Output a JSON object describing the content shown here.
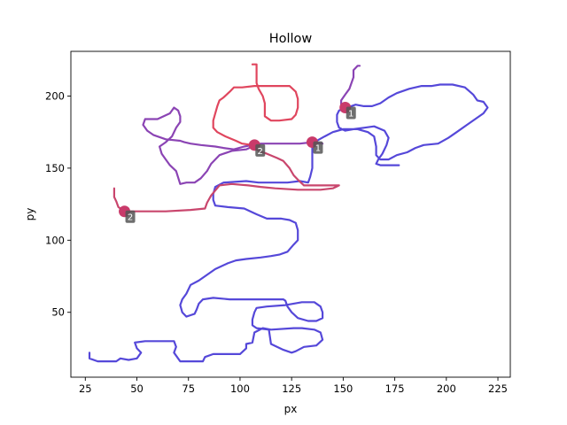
{
  "chart_data": {
    "type": "line",
    "title": "Hollow",
    "xlabel": "px",
    "ylabel": "py",
    "xlim": [
      18,
      231
    ],
    "ylim": [
      5,
      231
    ],
    "xticks": [
      25,
      50,
      75,
      100,
      125,
      150,
      175,
      200,
      225
    ],
    "yticks": [
      50,
      100,
      150,
      200
    ],
    "grid": false,
    "colors": {
      "start": "#5548d9",
      "mid": "#8b44b4",
      "end": "#e0465e",
      "marker": "#c93a6a",
      "label_box": "#555555"
    },
    "series": [
      {
        "values": [
          [
            27,
            22
          ],
          [
            27,
            18
          ],
          [
            31,
            16
          ],
          [
            40,
            16
          ],
          [
            42,
            18
          ],
          [
            46,
            17
          ],
          [
            50,
            18
          ],
          [
            52,
            22
          ],
          [
            50,
            25
          ],
          [
            49,
            29
          ],
          [
            54,
            30
          ],
          [
            68,
            30
          ],
          [
            69,
            26
          ],
          [
            68,
            22
          ],
          [
            71,
            16
          ],
          [
            82,
            16
          ],
          [
            83,
            19
          ],
          [
            87,
            21
          ],
          [
            100,
            21
          ],
          [
            103,
            25
          ],
          [
            103,
            28
          ],
          [
            106,
            29
          ],
          [
            107,
            36
          ],
          [
            111,
            39
          ],
          [
            115,
            38
          ],
          [
            126,
            39
          ],
          [
            130,
            39
          ],
          [
            136,
            38
          ],
          [
            139,
            36
          ],
          [
            140,
            31
          ],
          [
            137,
            27
          ],
          [
            131,
            26
          ],
          [
            127,
            23
          ],
          [
            125,
            22
          ],
          [
            121,
            24
          ],
          [
            115,
            28
          ],
          [
            114,
            38
          ],
          [
            108,
            39
          ],
          [
            106,
            41
          ],
          [
            106,
            45
          ],
          [
            107,
            50
          ],
          [
            108,
            53
          ],
          [
            113,
            54
          ],
          [
            122,
            55
          ],
          [
            130,
            57
          ],
          [
            136,
            57
          ],
          [
            139,
            54
          ],
          [
            140,
            50
          ],
          [
            140,
            46
          ],
          [
            137,
            44
          ],
          [
            133,
            44
          ],
          [
            128,
            46
          ],
          [
            125,
            50
          ],
          [
            123,
            54
          ],
          [
            122,
            58
          ],
          [
            121,
            59
          ],
          [
            95,
            59
          ],
          [
            87,
            60
          ],
          [
            82,
            59
          ],
          [
            80,
            56
          ],
          [
            79,
            52
          ],
          [
            78,
            49
          ],
          [
            76,
            48
          ],
          [
            74,
            47
          ],
          [
            72,
            50
          ],
          [
            71,
            55
          ],
          [
            72,
            59
          ],
          [
            74,
            63
          ],
          [
            76,
            69
          ],
          [
            80,
            72
          ],
          [
            84,
            76
          ],
          [
            88,
            80
          ],
          [
            94,
            84
          ],
          [
            98,
            86
          ],
          [
            103,
            87
          ],
          [
            110,
            88
          ],
          [
            115,
            89
          ],
          [
            119,
            90
          ],
          [
            123,
            92
          ],
          [
            126,
            97
          ],
          [
            128,
            100
          ],
          [
            128,
            107
          ],
          [
            127,
            112
          ],
          [
            124,
            114
          ],
          [
            120,
            115
          ],
          [
            113,
            115
          ],
          [
            108,
            118
          ],
          [
            102,
            122
          ],
          [
            94,
            123
          ],
          [
            88,
            124
          ],
          [
            87,
            128
          ],
          [
            87,
            132
          ],
          [
            88,
            137
          ],
          [
            92,
            140
          ],
          [
            103,
            141
          ],
          [
            109,
            140
          ],
          [
            117,
            140
          ],
          [
            123,
            140
          ],
          [
            129,
            141
          ],
          [
            133,
            140
          ],
          [
            134,
            144
          ],
          [
            135,
            150
          ],
          [
            135,
            156
          ],
          [
            135,
            164
          ],
          [
            136,
            168
          ],
          [
            141,
            172
          ],
          [
            145,
            175
          ],
          [
            150,
            177
          ],
          [
            157,
            177
          ],
          [
            162,
            175
          ],
          [
            165,
            172
          ],
          [
            166,
            165
          ],
          [
            166,
            159
          ],
          [
            168,
            156
          ],
          [
            172,
            156
          ],
          [
            176,
            159
          ],
          [
            181,
            161
          ],
          [
            185,
            164
          ],
          [
            189,
            166
          ],
          [
            196,
            167
          ],
          [
            201,
            171
          ],
          [
            205,
            175
          ],
          [
            210,
            180
          ],
          [
            214,
            184
          ],
          [
            218,
            188
          ],
          [
            220,
            192
          ],
          [
            218,
            196
          ],
          [
            215,
            197
          ],
          [
            213,
            201
          ],
          [
            209,
            206
          ],
          [
            203,
            208
          ],
          [
            197,
            208
          ],
          [
            193,
            207
          ],
          [
            188,
            207
          ],
          [
            182,
            205
          ],
          [
            176,
            202
          ],
          [
            172,
            199
          ],
          [
            168,
            195
          ],
          [
            164,
            193
          ],
          [
            160,
            193
          ],
          [
            156,
            194
          ],
          [
            152,
            192
          ],
          [
            148,
            190
          ],
          [
            147,
            187
          ],
          [
            147,
            182
          ],
          [
            148,
            178
          ],
          [
            151,
            176
          ],
          [
            155,
            177
          ],
          [
            160,
            178
          ],
          [
            165,
            179
          ],
          [
            170,
            176
          ],
          [
            172,
            171
          ],
          [
            171,
            166
          ],
          [
            169,
            160
          ],
          [
            167,
            156
          ],
          [
            166,
            153
          ],
          [
            168,
            152
          ],
          [
            177,
            152
          ]
        ],
        "color": "#5548d9"
      },
      {
        "values": [
          [
            149,
            192
          ],
          [
            149,
            197
          ],
          [
            151,
            201
          ],
          [
            153,
            205
          ],
          [
            154,
            209
          ],
          [
            155,
            213
          ],
          [
            155,
            218
          ],
          [
            157,
            221
          ],
          [
            158,
            221
          ]
        ],
        "color": "#8b44b4"
      },
      {
        "values": [
          [
            140,
            167
          ],
          [
            135,
            168
          ],
          [
            129,
            167
          ],
          [
            120,
            167
          ],
          [
            110,
            167
          ],
          [
            108,
            166
          ],
          [
            106,
            165
          ],
          [
            103,
            163
          ],
          [
            96,
            162
          ],
          [
            90,
            159
          ],
          [
            86,
            153
          ],
          [
            84,
            148
          ],
          [
            81,
            143
          ],
          [
            78,
            140
          ],
          [
            74,
            140
          ],
          [
            71,
            139
          ],
          [
            69,
            148
          ],
          [
            66,
            152
          ],
          [
            64,
            156
          ],
          [
            62,
            160
          ],
          [
            61,
            165
          ],
          [
            64,
            168
          ],
          [
            67,
            172
          ],
          [
            69,
            178
          ],
          [
            71,
            182
          ],
          [
            71,
            186
          ],
          [
            70,
            190
          ],
          [
            68,
            192
          ],
          [
            66,
            188
          ],
          [
            60,
            184
          ],
          [
            54,
            184
          ],
          [
            53,
            180
          ],
          [
            55,
            176
          ],
          [
            58,
            173
          ],
          [
            64,
            170
          ],
          [
            71,
            169
          ],
          [
            73,
            168
          ],
          [
            76,
            167
          ],
          [
            81,
            166
          ],
          [
            88,
            165
          ],
          [
            92,
            164
          ],
          [
            97,
            163
          ],
          [
            102,
            165
          ],
          [
            106,
            166
          ]
        ],
        "color": "#8b44b4"
      },
      {
        "values": [
          [
            106,
            166
          ],
          [
            109,
            162
          ],
          [
            113,
            160
          ],
          [
            118,
            157
          ],
          [
            121,
            155
          ],
          [
            124,
            150
          ],
          [
            126,
            145
          ],
          [
            128,
            142
          ],
          [
            131,
            138
          ],
          [
            136,
            138
          ],
          [
            144,
            138
          ],
          [
            148,
            138
          ],
          [
            145,
            136
          ],
          [
            139,
            135
          ],
          [
            128,
            135
          ],
          [
            117,
            136
          ],
          [
            110,
            137
          ],
          [
            104,
            138
          ],
          [
            96,
            139
          ],
          [
            90,
            138
          ],
          [
            86,
            131
          ],
          [
            84,
            126
          ],
          [
            83,
            122
          ],
          [
            76,
            121
          ],
          [
            64,
            120
          ],
          [
            56,
            120
          ],
          [
            49,
            120
          ],
          [
            44,
            120
          ],
          [
            41,
            123
          ],
          [
            40,
            127
          ],
          [
            39,
            130
          ],
          [
            39,
            136
          ]
        ],
        "color": "#c9466d"
      },
      {
        "values": [
          [
            106,
            166
          ],
          [
            101,
            167
          ],
          [
            98,
            169
          ],
          [
            93,
            172
          ],
          [
            89,
            175
          ],
          [
            87,
            178
          ],
          [
            87,
            183
          ],
          [
            88,
            188
          ],
          [
            89,
            193
          ],
          [
            90,
            197
          ],
          [
            92,
            199
          ],
          [
            95,
            203
          ],
          [
            97,
            206
          ],
          [
            101,
            206
          ],
          [
            107,
            207
          ],
          [
            116,
            207
          ],
          [
            124,
            207
          ],
          [
            127,
            203
          ],
          [
            128,
            198
          ],
          [
            128,
            192
          ],
          [
            127,
            187
          ],
          [
            125,
            184
          ],
          [
            119,
            183
          ],
          [
            115,
            183
          ],
          [
            112,
            186
          ],
          [
            112,
            190
          ],
          [
            112,
            195
          ],
          [
            111,
            200
          ],
          [
            109,
            205
          ],
          [
            108,
            209
          ],
          [
            108,
            214
          ],
          [
            108,
            219
          ],
          [
            108,
            222
          ],
          [
            106,
            222
          ]
        ],
        "color": "#e0465e"
      }
    ],
    "markers": [
      {
        "x": 151,
        "y": 192,
        "label": "1"
      },
      {
        "x": 135,
        "y": 168,
        "label": "1"
      },
      {
        "x": 107,
        "y": 166,
        "label": "2"
      },
      {
        "x": 44,
        "y": 120,
        "label": "2"
      }
    ]
  }
}
